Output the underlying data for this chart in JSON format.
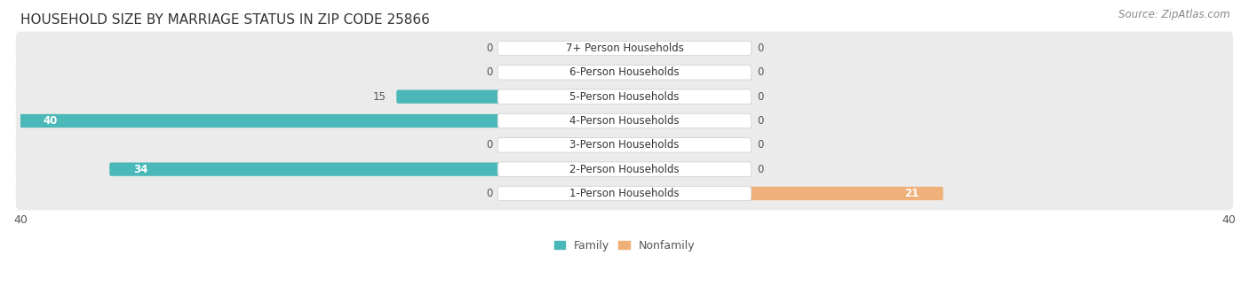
{
  "title": "HOUSEHOLD SIZE BY MARRIAGE STATUS IN ZIP CODE 25866",
  "source": "Source: ZipAtlas.com",
  "categories": [
    "7+ Person Households",
    "6-Person Households",
    "5-Person Households",
    "4-Person Households",
    "3-Person Households",
    "2-Person Households",
    "1-Person Households"
  ],
  "family_values": [
    0,
    0,
    15,
    40,
    0,
    34,
    0
  ],
  "nonfamily_values": [
    0,
    0,
    0,
    0,
    0,
    0,
    21
  ],
  "family_color": "#4ab8b8",
  "nonfamily_color": "#f0b07a",
  "xlim_left": -40,
  "xlim_right": 40,
  "bar_row_bg_light": "#ebebeb",
  "bar_row_bg_dark": "#e0e0e0",
  "title_fontsize": 11,
  "source_fontsize": 8.5,
  "label_fontsize": 8.5,
  "value_fontsize": 8.5,
  "axis_fontsize": 9,
  "legend_fontsize": 9
}
